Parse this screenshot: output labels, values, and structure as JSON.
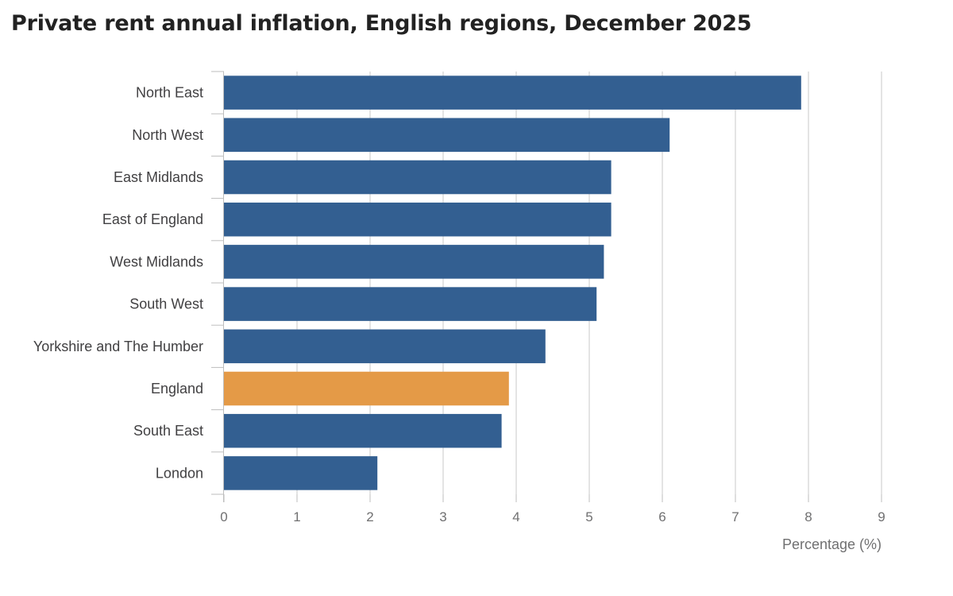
{
  "chart_data": {
    "type": "bar",
    "orientation": "horizontal",
    "title": "Private rent annual inflation, English regions, December 2025",
    "categories": [
      "North East",
      "North West",
      "East Midlands",
      "East of England",
      "West Midlands",
      "South West",
      "Yorkshire and The Humber",
      "England",
      "South East",
      "London"
    ],
    "values": [
      7.9,
      6.1,
      5.3,
      5.3,
      5.2,
      5.1,
      4.4,
      3.9,
      3.8,
      2.1
    ],
    "xlabel": "Percentage (%)",
    "ylabel": "",
    "xlim": [
      0,
      9
    ],
    "xticks": [
      "0",
      "1",
      "2",
      "3",
      "4",
      "5",
      "6",
      "7",
      "8",
      "9"
    ],
    "grid": "vertical",
    "highlight_category": "England",
    "colors": {
      "bar": "#335f91",
      "highlight": "#e49a47",
      "grid": "#dcdcdc",
      "axis": "#bebebe"
    }
  }
}
